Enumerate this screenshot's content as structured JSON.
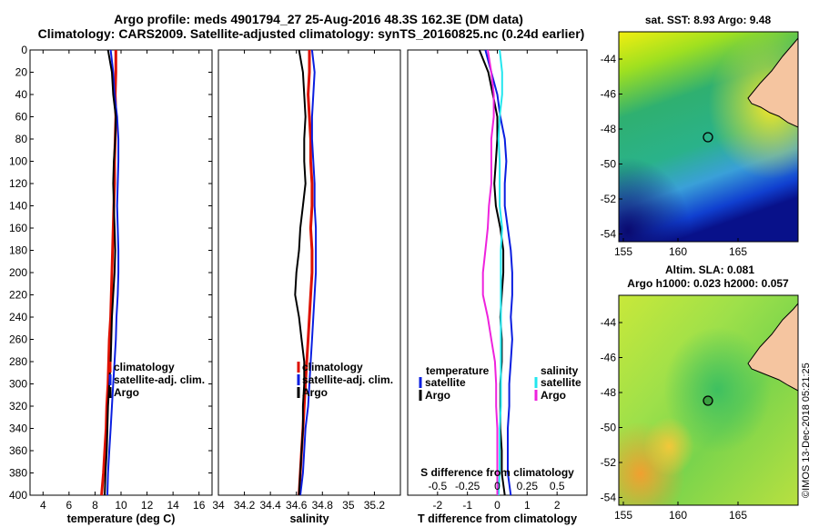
{
  "header": {
    "line1": "Argo profile: meds 4901794_27 25-Aug-2016 48.3S 162.3E (DM data)",
    "line2": "Climatology: CARS2009. Satellite-adjusted climatology: synTS_20160825.nc (0.24d earlier)"
  },
  "watermark": "©IMOS 13-Dec-2018 05:21:25",
  "colors": {
    "climatology": "#dd1100",
    "satellite": "#0a1ee0",
    "argo": "#000000",
    "sal_satellite": "#22e6ee",
    "sal_argo": "#ee22dd"
  },
  "chart_data": [
    {
      "type": "line",
      "name": "temperature",
      "xlabel": "temperature (deg C)",
      "ylabel": "depth",
      "xlim": [
        3,
        17
      ],
      "ylim": [
        400,
        0
      ],
      "xticks": [
        4,
        6,
        8,
        10,
        12,
        14,
        16
      ],
      "yticks": [
        0,
        20,
        40,
        60,
        80,
        100,
        120,
        140,
        160,
        180,
        200,
        220,
        240,
        260,
        280,
        300,
        320,
        340,
        360,
        380,
        400
      ],
      "depth": [
        0,
        20,
        40,
        60,
        80,
        100,
        120,
        140,
        160,
        180,
        200,
        220,
        240,
        260,
        280,
        300,
        320,
        340,
        360,
        380,
        400
      ],
      "legend": [
        "climatology",
        "satellite-adj. clim.",
        "Argo"
      ],
      "series": [
        {
          "name": "climatology",
          "color": "#dd1100",
          "values": [
            9.6,
            9.6,
            9.55,
            9.6,
            9.55,
            9.5,
            9.5,
            9.45,
            9.4,
            9.35,
            9.3,
            9.25,
            9.2,
            9.1,
            9.05,
            9.0,
            8.9,
            8.85,
            8.75,
            8.65,
            8.5
          ]
        },
        {
          "name": "satellite-adj. clim.",
          "color": "#0a1ee0",
          "values": [
            9.2,
            9.4,
            9.5,
            9.7,
            9.8,
            9.8,
            9.75,
            9.7,
            9.75,
            9.8,
            9.8,
            9.75,
            9.65,
            9.6,
            9.5,
            9.4,
            9.3,
            9.2,
            9.1,
            9.0,
            8.95
          ]
        },
        {
          "name": "Argo",
          "color": "#000000",
          "values": [
            9.0,
            9.3,
            9.4,
            9.6,
            9.55,
            9.45,
            9.4,
            9.45,
            9.5,
            9.55,
            9.5,
            9.4,
            9.3,
            9.25,
            9.2,
            9.1,
            9.0,
            8.95,
            8.9,
            8.8,
            8.75
          ]
        }
      ]
    },
    {
      "type": "line",
      "name": "salinity",
      "xlabel": "salinity",
      "xlim": [
        34,
        35.4
      ],
      "ylim": [
        400,
        0
      ],
      "xticks": [
        34,
        34.2,
        34.4,
        34.6,
        34.8,
        35,
        35.2
      ],
      "depth": [
        0,
        20,
        40,
        60,
        80,
        100,
        120,
        140,
        160,
        180,
        200,
        220,
        240,
        260,
        280,
        300,
        320,
        340,
        360,
        380,
        400
      ],
      "legend": [
        "climatology",
        "satellite-adj. clim.",
        "Argo"
      ],
      "series": [
        {
          "name": "climatology",
          "color": "#dd1100",
          "values": [
            34.7,
            34.7,
            34.69,
            34.7,
            34.71,
            34.71,
            34.72,
            34.72,
            34.71,
            34.72,
            34.72,
            34.71,
            34.7,
            34.69,
            34.68,
            34.67,
            34.66,
            34.65,
            34.64,
            34.63,
            34.62
          ]
        },
        {
          "name": "satellite-adj. clim.",
          "color": "#0a1ee0",
          "values": [
            34.72,
            34.74,
            34.73,
            34.72,
            34.72,
            34.73,
            34.74,
            34.74,
            34.75,
            34.75,
            34.75,
            34.74,
            34.73,
            34.72,
            34.71,
            34.7,
            34.69,
            34.67,
            34.66,
            34.65,
            34.63
          ]
        },
        {
          "name": "Argo",
          "color": "#000000",
          "values": [
            34.62,
            34.65,
            34.66,
            34.67,
            34.66,
            34.66,
            34.67,
            34.65,
            34.63,
            34.62,
            34.6,
            34.59,
            34.62,
            34.64,
            34.66,
            34.66,
            34.65,
            34.65,
            34.64,
            34.63,
            34.62
          ]
        }
      ]
    },
    {
      "type": "line",
      "name": "differences",
      "xlabel": "T difference from climatology",
      "xlabel2": "S difference from climatology",
      "xlim": [
        -3,
        3
      ],
      "xticks": [
        -2,
        -1,
        0,
        1,
        2
      ],
      "xticks2": [
        -0.5,
        -0.25,
        0,
        0.25,
        0.5
      ],
      "ylim": [
        400,
        0
      ],
      "depth": [
        0,
        20,
        40,
        60,
        80,
        100,
        120,
        140,
        160,
        180,
        200,
        220,
        240,
        260,
        280,
        300,
        320,
        340,
        360,
        380,
        400
      ],
      "legend_temperature_title": "temperature",
      "legend_salinity_title": "salinity",
      "legend": [
        "satellite",
        "Argo",
        "satellite",
        "Argo"
      ],
      "series": [
        {
          "name": "T satellite",
          "color": "#0a1ee0",
          "values": [
            -0.4,
            -0.2,
            0.0,
            0.1,
            0.25,
            0.3,
            0.25,
            0.25,
            0.35,
            0.45,
            0.5,
            0.5,
            0.45,
            0.5,
            0.45,
            0.4,
            0.4,
            0.35,
            0.35,
            0.35,
            0.45
          ]
        },
        {
          "name": "T Argo",
          "color": "#000000",
          "values": [
            -0.6,
            -0.3,
            -0.15,
            0.0,
            0.0,
            -0.05,
            -0.1,
            -0.05,
            0.1,
            0.2,
            0.2,
            0.15,
            0.1,
            0.15,
            0.15,
            0.1,
            0.1,
            0.1,
            0.15,
            0.15,
            0.25
          ]
        },
        {
          "name": "S satellite",
          "color": "#22e6ee",
          "values": [
            0.02,
            0.04,
            0.04,
            0.02,
            0.01,
            0.02,
            0.02,
            0.02,
            0.04,
            0.03,
            0.03,
            0.03,
            0.03,
            0.03,
            0.03,
            0.03,
            0.03,
            0.02,
            0.02,
            0.02,
            0.01
          ]
        },
        {
          "name": "S Argo",
          "color": "#ee22dd",
          "values": [
            -0.08,
            -0.05,
            -0.03,
            -0.03,
            -0.05,
            -0.05,
            -0.05,
            -0.07,
            -0.08,
            -0.1,
            -0.12,
            -0.12,
            -0.08,
            -0.05,
            -0.02,
            -0.01,
            -0.01,
            0.0,
            0.0,
            0.0,
            0.0
          ]
        }
      ]
    }
  ],
  "maps": [
    {
      "name": "sst",
      "title": "sat. SST: 8.93 Argo: 9.48",
      "lat_ticks": [
        "-44",
        "-46",
        "-48",
        "-50",
        "-52",
        "-54"
      ],
      "lon_ticks": [
        "155",
        "160",
        "165"
      ]
    },
    {
      "name": "sla",
      "title": "Altim. SLA: 0.081",
      "subtitle": "Argo h1000: 0.023 h2000: 0.057",
      "lat_ticks": [
        "-44",
        "-46",
        "-48",
        "-50",
        "-52",
        "-54"
      ],
      "lon_ticks": [
        "155",
        "160",
        "165"
      ]
    }
  ]
}
